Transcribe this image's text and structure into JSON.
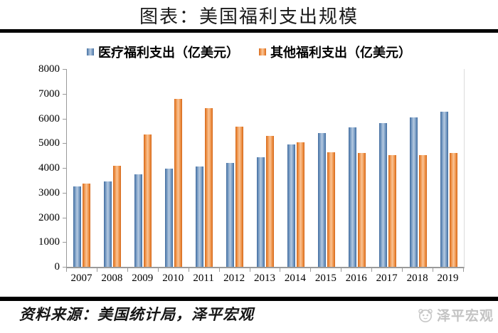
{
  "title": "图表：美国福利支出规模",
  "legend": [
    {
      "label": "医疗福利支出（亿美元）",
      "color": "#4f81bd"
    },
    {
      "label": "其他福利支出（亿美元）",
      "color": "#f79646"
    }
  ],
  "chart_data": {
    "type": "bar",
    "title": "图表：美国福利支出规模",
    "categories": [
      "2007",
      "2008",
      "2009",
      "2010",
      "2011",
      "2012",
      "2013",
      "2014",
      "2015",
      "2016",
      "2017",
      "2018",
      "2019"
    ],
    "series": [
      {
        "name": "医疗福利支出（亿美元）",
        "color": "#4f81bd",
        "values": [
          3240,
          3460,
          3740,
          3960,
          4060,
          4210,
          4420,
          4960,
          5410,
          5640,
          5810,
          6040,
          6260
        ]
      },
      {
        "name": "其他福利支出（亿美元）",
        "color": "#f79646",
        "values": [
          3370,
          4100,
          5340,
          6780,
          6410,
          5680,
          5290,
          5040,
          4630,
          4600,
          4530,
          4520,
          4610
        ]
      }
    ],
    "xlabel": "",
    "ylabel": "",
    "ylim": [
      0,
      8000
    ],
    "yticks": [
      0,
      1000,
      2000,
      3000,
      4000,
      5000,
      6000,
      7000,
      8000
    ],
    "grid": false,
    "legend_position": "top",
    "axis_color": "#9a9a9a"
  },
  "footer": {
    "source_text": "资料来源：美国统计局，泽平宏观",
    "logo_text": "泽平宏观"
  }
}
